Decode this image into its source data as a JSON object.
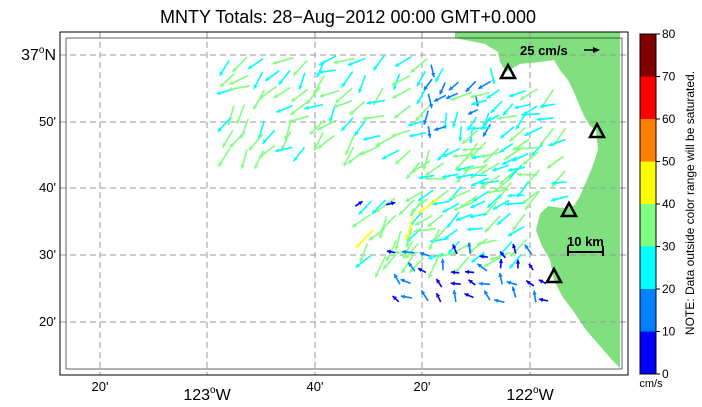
{
  "title": "MNTY Totals: 28−Aug−2012 00:00 GMT+0.000",
  "lat_labels": [
    {
      "text": "37",
      "sup": "o",
      "suffix": "N"
    },
    {
      "text": "50'"
    },
    {
      "text": "40'"
    },
    {
      "text": "30'"
    },
    {
      "text": "20'"
    }
  ],
  "lon_labels": [
    {
      "text": "20'"
    },
    {
      "text": "123",
      "sup": "o",
      "suffix": "W"
    },
    {
      "text": "40'"
    },
    {
      "text": "20'"
    },
    {
      "text": "122",
      "sup": "o",
      "suffix": "W"
    }
  ],
  "reference_vector": "25 cm/s",
  "scale_bar": "10 km",
  "colorbar": {
    "ticks": [
      "80",
      "70",
      "60",
      "50",
      "40",
      "30",
      "20",
      "10",
      "0"
    ],
    "colors": [
      "#800000",
      "#ff0000",
      "#ff8000",
      "#ffff00",
      "#80ff80",
      "#00ffff",
      "#0080ff",
      "#0000ff"
    ],
    "unit": "cm/s",
    "note": "NOTE: Data outside color range will be saturated."
  },
  "colors": {
    "land": "#80e080",
    "grid": "#9a9a9a",
    "station_marker": "#000000"
  }
}
